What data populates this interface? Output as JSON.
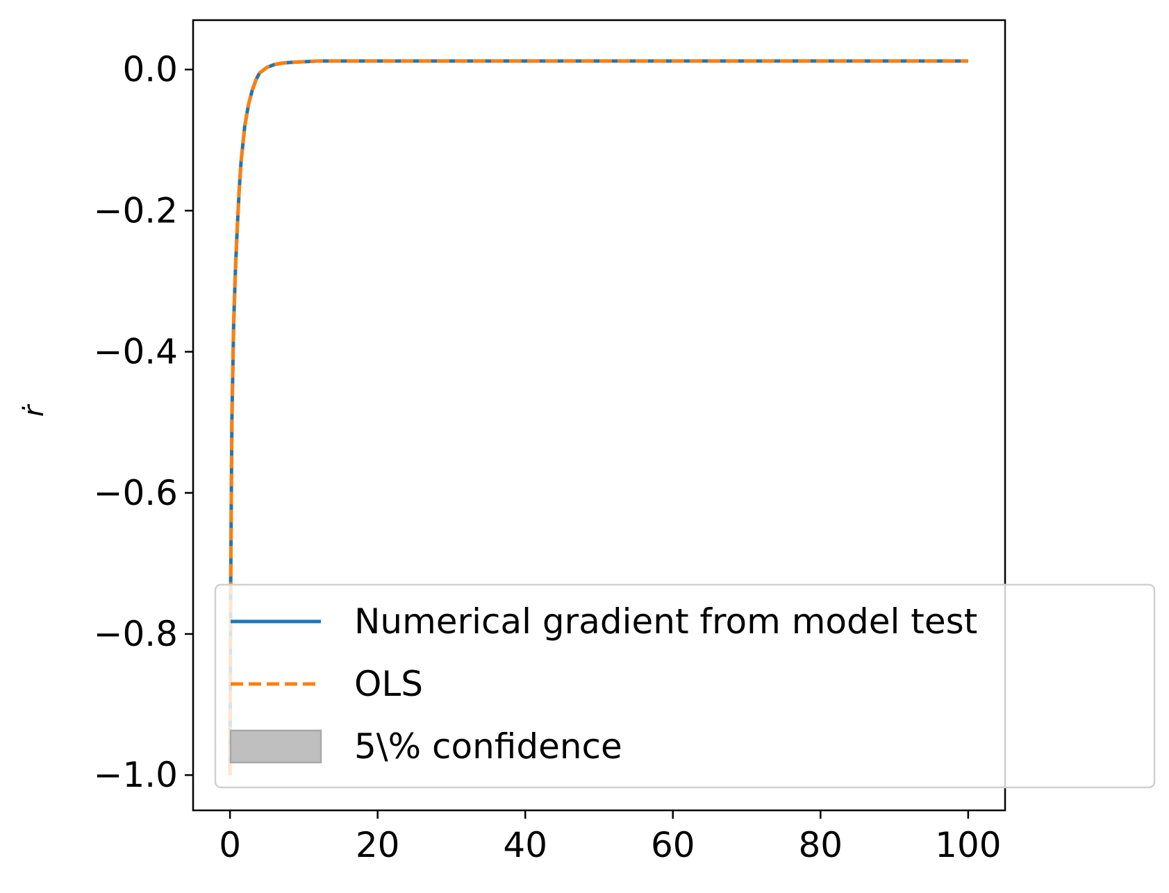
{
  "chart_data": {
    "type": "line",
    "title": "",
    "xlabel": "",
    "ylabel": "ṙ",
    "xlim": [
      -5,
      105
    ],
    "ylim": [
      -1.05,
      0.07
    ],
    "x_ticks": [
      0,
      20,
      40,
      60,
      80,
      100
    ],
    "x_tick_labels": [
      "0",
      "20",
      "40",
      "60",
      "80",
      "100"
    ],
    "y_ticks": [
      0.0,
      -0.2,
      -0.4,
      -0.6,
      -0.8,
      -1.0
    ],
    "y_tick_labels": [
      "0.0",
      "−0.2",
      "−0.4",
      "−0.6",
      "−0.8",
      "−1.0"
    ],
    "grid": false,
    "legend_position": "lower-right",
    "series": [
      {
        "name": "Numerical gradient from model test",
        "color": "#1f77b4",
        "style": "solid",
        "x": [
          0,
          0.1,
          0.25,
          0.5,
          0.75,
          1.0,
          1.25,
          1.5,
          2.0,
          2.5,
          3.0,
          3.5,
          4.0,
          5.0,
          6.0,
          7.0,
          8.0,
          10.0,
          12.0,
          15.0,
          20.0,
          30.0,
          40.0,
          50.0,
          60.0,
          70.0,
          80.0,
          90.0,
          100.0
        ],
        "y": [
          -1.0,
          -0.72,
          -0.5,
          -0.36,
          -0.28,
          -0.22,
          -0.17,
          -0.13,
          -0.08,
          -0.05,
          -0.03,
          -0.015,
          -0.005,
          0.003,
          0.007,
          0.009,
          0.01,
          0.011,
          0.012,
          0.012,
          0.012,
          0.012,
          0.012,
          0.012,
          0.012,
          0.012,
          0.012,
          0.012,
          0.012
        ]
      },
      {
        "name": "OLS",
        "color": "#ff7f0e",
        "style": "dashed",
        "x": [
          0,
          0.1,
          0.25,
          0.5,
          0.75,
          1.0,
          1.25,
          1.5,
          2.0,
          2.5,
          3.0,
          3.5,
          4.0,
          5.0,
          6.0,
          7.0,
          8.0,
          10.0,
          12.0,
          15.0,
          20.0,
          30.0,
          40.0,
          50.0,
          60.0,
          70.0,
          80.0,
          90.0,
          100.0
        ],
        "y": [
          -1.0,
          -0.72,
          -0.5,
          -0.36,
          -0.28,
          -0.22,
          -0.17,
          -0.13,
          -0.08,
          -0.05,
          -0.03,
          -0.015,
          -0.005,
          0.003,
          0.007,
          0.009,
          0.01,
          0.011,
          0.012,
          0.012,
          0.012,
          0.012,
          0.012,
          0.012,
          0.012,
          0.012,
          0.012,
          0.012,
          0.012
        ]
      }
    ],
    "legend": [
      {
        "label": "Numerical gradient from model test",
        "kind": "line",
        "color": "#1f77b4"
      },
      {
        "label": "OLS",
        "kind": "dashed",
        "color": "#ff7f0e"
      },
      {
        "label": "5\\% confidence",
        "kind": "patch",
        "color": "#bfbfbf"
      }
    ]
  }
}
